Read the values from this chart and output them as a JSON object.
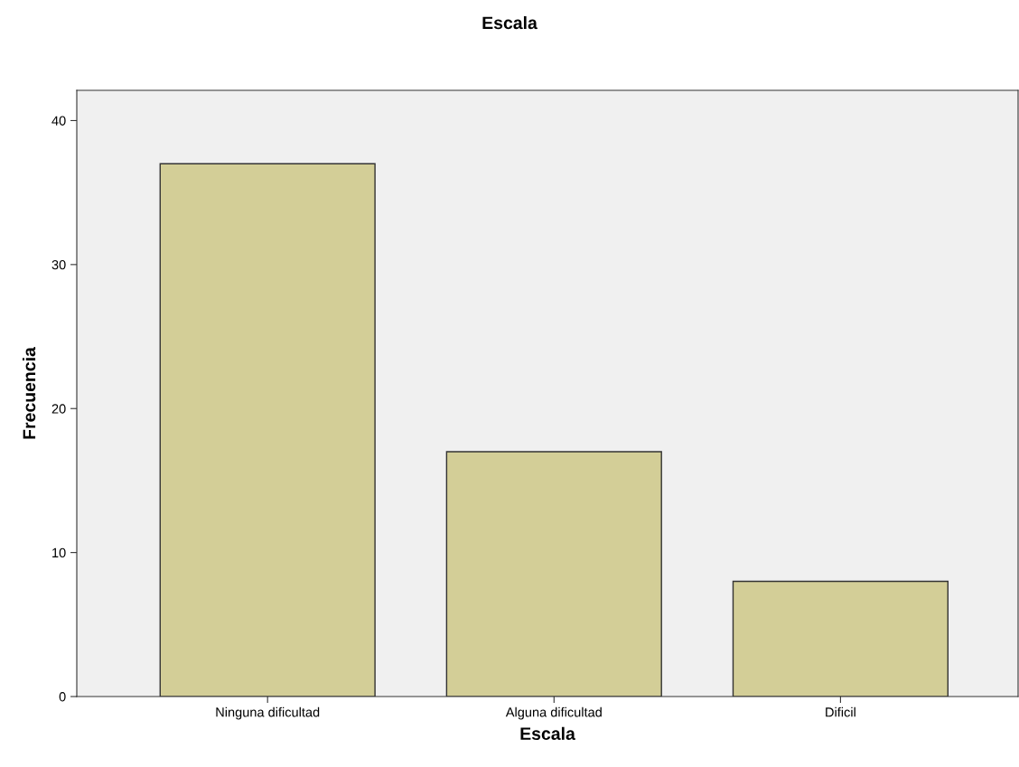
{
  "chart_data": {
    "type": "bar",
    "title": "Escala",
    "xlabel": "Escala",
    "ylabel": "Frecuencia",
    "categories": [
      "Ninguna dificultad",
      "Alguna dificultad",
      "Dificil"
    ],
    "values": [
      37,
      17,
      8
    ],
    "color": "#d3ce97",
    "ylim": [
      0,
      42.1
    ],
    "yticks": [
      0,
      10,
      20,
      30,
      40
    ],
    "grid": false
  }
}
